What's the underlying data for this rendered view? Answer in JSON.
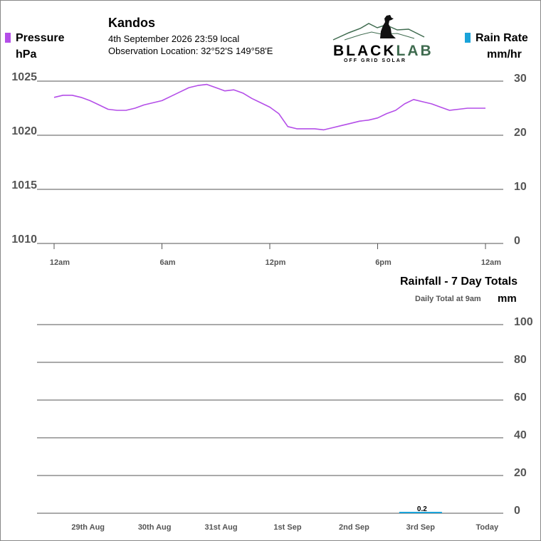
{
  "header": {
    "station": "Kandos",
    "date_line": "4th September 2026  23:59 local",
    "location_line": "Observation Location: 32°52'S 149°58'E"
  },
  "logo": {
    "brand": "BLACKLAB",
    "tagline": "OFF GRID SOLAR"
  },
  "colors": {
    "pressure": "#b44ee8",
    "rain": "#1aa3d9",
    "grid": "#555555",
    "axis_text": "#555555"
  },
  "chart_data": [
    {
      "type": "line",
      "left_axis": {
        "label": "Pressure",
        "unit": "hPa",
        "ticks": [
          1025,
          1020,
          1015,
          1010
        ],
        "ylim": [
          1010,
          1025
        ]
      },
      "right_axis": {
        "label": "Rain Rate",
        "unit": "mm/hr",
        "ticks": [
          30,
          20,
          10,
          0
        ],
        "ylim": [
          0,
          30
        ]
      },
      "x_ticks": [
        "12am",
        "6am",
        "12pm",
        "6pm",
        "12am"
      ],
      "xlim_hours": [
        0,
        24
      ],
      "series": [
        {
          "name": "Pressure",
          "x_hours": [
            0,
            0.5,
            1,
            1.5,
            2,
            2.5,
            3,
            3.5,
            4,
            4.5,
            5,
            5.5,
            6,
            6.5,
            7,
            7.5,
            8,
            8.5,
            9,
            9.5,
            10,
            10.5,
            11,
            11.5,
            12,
            12.5,
            13,
            13.5,
            14,
            14.5,
            15,
            15.5,
            16,
            16.5,
            17,
            17.5,
            18,
            18.5,
            19,
            19.5,
            20,
            20.5,
            21,
            21.5,
            22,
            22.5,
            23,
            23.5,
            24
          ],
          "values": [
            1023.5,
            1023.7,
            1023.7,
            1023.5,
            1023.2,
            1022.8,
            1022.4,
            1022.3,
            1022.3,
            1022.5,
            1022.8,
            1023.0,
            1023.2,
            1023.6,
            1024.0,
            1024.4,
            1024.6,
            1024.7,
            1024.4,
            1024.1,
            1024.2,
            1023.9,
            1023.4,
            1023.0,
            1022.6,
            1022.0,
            1020.8,
            1020.6,
            1020.6,
            1020.6,
            1020.5,
            1020.7,
            1020.9,
            1021.1,
            1021.3,
            1021.4,
            1021.6,
            1022.0,
            1022.3,
            1022.9,
            1023.3,
            1023.1,
            1022.9,
            1022.6,
            1022.3,
            1022.4,
            1022.5,
            1022.5,
            1022.5
          ]
        },
        {
          "name": "Rain Rate",
          "values": []
        }
      ]
    },
    {
      "type": "bar",
      "title": "Rainfall - 7 Day Totals",
      "subtitle": "Daily Total at 9am",
      "unit": "mm",
      "categories": [
        "29th Aug",
        "30th Aug",
        "31st Aug",
        "1st Sep",
        "2nd Sep",
        "3rd Sep",
        "Today"
      ],
      "values": [
        0,
        0,
        0,
        0,
        0,
        0.2,
        0
      ],
      "value_labels": [
        "",
        "",
        "",
        "",
        "",
        "0.2",
        ""
      ],
      "ylim": [
        0,
        100
      ],
      "ticks": [
        100,
        80,
        60,
        40,
        20,
        0
      ]
    }
  ]
}
